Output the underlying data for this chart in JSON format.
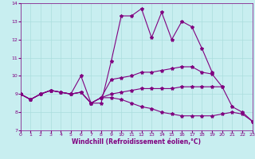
{
  "title": "",
  "xlabel": "Windchill (Refroidissement éolien,°C)",
  "ylabel": "",
  "xlim": [
    -0.5,
    23.5
  ],
  "ylim": [
    7,
    14
  ],
  "x": [
    0,
    1,
    2,
    3,
    4,
    5,
    6,
    7,
    8,
    9,
    10,
    11,
    12,
    13,
    14,
    15,
    16,
    17,
    18,
    19,
    20,
    21,
    22,
    23
  ],
  "series": [
    [
      9.0,
      8.7,
      9.0,
      9.2,
      9.1,
      9.0,
      10.0,
      8.5,
      8.5,
      10.8,
      13.3,
      13.3,
      13.7,
      12.1,
      13.5,
      12.0,
      13.0,
      12.7,
      11.5,
      10.2,
      null,
      null,
      null,
      null
    ],
    [
      9.0,
      8.7,
      9.0,
      9.2,
      9.1,
      9.0,
      9.1,
      8.5,
      8.8,
      9.8,
      9.9,
      10.0,
      10.2,
      10.2,
      10.3,
      10.4,
      10.5,
      10.5,
      10.2,
      10.1,
      9.4,
      null,
      null,
      null
    ],
    [
      9.0,
      8.7,
      9.0,
      9.2,
      9.1,
      9.0,
      9.1,
      8.5,
      8.8,
      9.0,
      9.1,
      9.2,
      9.3,
      9.3,
      9.3,
      9.3,
      9.4,
      9.4,
      9.4,
      9.4,
      9.4,
      8.3,
      8.0,
      7.5
    ],
    [
      9.0,
      8.7,
      9.0,
      9.2,
      9.1,
      9.0,
      9.1,
      8.5,
      8.8,
      8.8,
      8.7,
      8.5,
      8.3,
      8.2,
      8.0,
      7.9,
      7.8,
      7.8,
      7.8,
      7.8,
      7.9,
      8.0,
      7.9,
      7.5
    ]
  ],
  "line_color": "#800080",
  "marker": "*",
  "markersize": 3,
  "bg_color": "#c8eef0",
  "grid_color": "#aadddd",
  "axis_color": "#800080",
  "tick_color": "#800080",
  "label_color": "#800080",
  "linewidth": 0.8,
  "xlabel_fontsize": 5.5,
  "tick_fontsize": 4.5
}
